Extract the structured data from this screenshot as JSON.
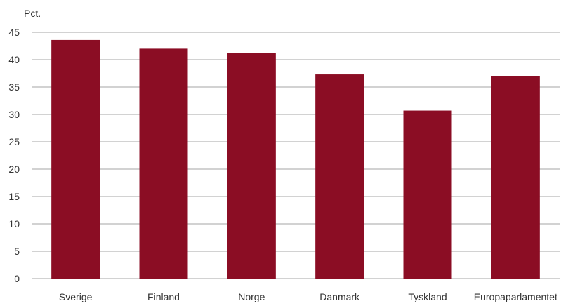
{
  "chart_data": {
    "type": "bar",
    "ylabel": "Pct.",
    "ylim": [
      0,
      45
    ],
    "yticks": [
      0,
      5,
      10,
      15,
      20,
      25,
      30,
      35,
      40,
      45
    ],
    "grid": true,
    "categories": [
      "Sverige",
      "Finland",
      "Norge",
      "Danmark",
      "Tyskland",
      "Europaparlamentet"
    ],
    "values": [
      43.6,
      42.0,
      41.2,
      37.3,
      30.7,
      37.0
    ],
    "bar_color": "#8b0d24",
    "grid_color": "#a6a6a6"
  }
}
